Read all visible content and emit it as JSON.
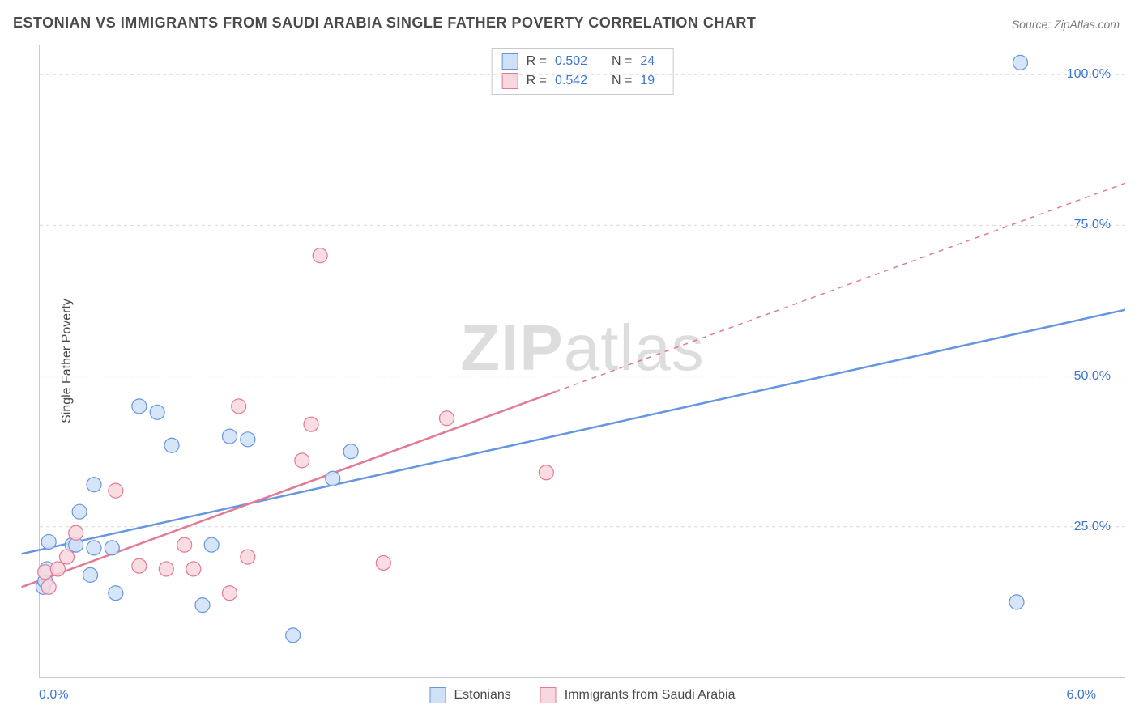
{
  "title": "ESTONIAN VS IMMIGRANTS FROM SAUDI ARABIA SINGLE FATHER POVERTY CORRELATION CHART",
  "source": "Source: ZipAtlas.com",
  "ylabel": "Single Father Poverty",
  "watermark_a": "ZIP",
  "watermark_b": "atlas",
  "chart": {
    "type": "scatter",
    "xlim": [
      0.0,
      6.0
    ],
    "ylim": [
      0.0,
      105.0
    ],
    "xticks": [
      {
        "v": 0.0,
        "label": "0.0%"
      },
      {
        "v": 6.0,
        "label": "6.0%"
      }
    ],
    "yticks": [
      {
        "v": 25.0,
        "label": "25.0%"
      },
      {
        "v": 50.0,
        "label": "50.0%"
      },
      {
        "v": 75.0,
        "label": "75.0%"
      },
      {
        "v": 100.0,
        "label": "100.0%"
      }
    ],
    "grid_color": "#d9d9d9",
    "background_color": "#ffffff",
    "marker_radius": 9,
    "series": [
      {
        "name": "Estonians",
        "fill": "#cfe0f7",
        "stroke": "#6696df",
        "trend": {
          "x1": -0.1,
          "y1": 20.5,
          "x2": 6.0,
          "y2": 61.0,
          "dashed_from_x": null
        },
        "R": "0.502",
        "N": "24",
        "points": [
          [
            0.02,
            15.0
          ],
          [
            0.03,
            16.0
          ],
          [
            0.04,
            18.0
          ],
          [
            0.05,
            22.5
          ],
          [
            0.18,
            22.0
          ],
          [
            0.2,
            22.0
          ],
          [
            0.22,
            27.5
          ],
          [
            0.3,
            21.5
          ],
          [
            0.28,
            17.0
          ],
          [
            0.3,
            32.0
          ],
          [
            0.4,
            21.5
          ],
          [
            0.42,
            14.0
          ],
          [
            0.55,
            45.0
          ],
          [
            0.65,
            44.0
          ],
          [
            0.73,
            38.5
          ],
          [
            0.9,
            12.0
          ],
          [
            0.95,
            22.0
          ],
          [
            1.05,
            40.0
          ],
          [
            1.15,
            39.5
          ],
          [
            1.4,
            7.0
          ],
          [
            1.62,
            33.0
          ],
          [
            1.72,
            37.5
          ],
          [
            5.42,
            102.0
          ],
          [
            5.4,
            12.5
          ]
        ]
      },
      {
        "name": "Immigrants from Saudi Arabia",
        "fill": "#f8d7de",
        "stroke": "#e27a94",
        "trend": {
          "x1": -0.1,
          "y1": 15.0,
          "x2": 6.0,
          "y2": 82.0,
          "dashed_from_x": 2.85
        },
        "R": "0.542",
        "N": "19",
        "points": [
          [
            0.03,
            17.5
          ],
          [
            0.05,
            15.0
          ],
          [
            0.1,
            18.0
          ],
          [
            0.15,
            20.0
          ],
          [
            0.2,
            24.0
          ],
          [
            0.42,
            31.0
          ],
          [
            0.55,
            18.5
          ],
          [
            0.7,
            18.0
          ],
          [
            0.8,
            22.0
          ],
          [
            0.85,
            18.0
          ],
          [
            1.05,
            14.0
          ],
          [
            1.1,
            45.0
          ],
          [
            1.15,
            20.0
          ],
          [
            1.45,
            36.0
          ],
          [
            1.5,
            42.0
          ],
          [
            1.55,
            70.0
          ],
          [
            1.9,
            19.0
          ],
          [
            2.25,
            43.0
          ],
          [
            2.8,
            34.0
          ]
        ]
      }
    ]
  },
  "legend_top": [
    {
      "swatch_fill": "#cfe0f7",
      "swatch_stroke": "#6696df",
      "R": " 0.502",
      "N": " 24"
    },
    {
      "swatch_fill": "#f8d7de",
      "swatch_stroke": "#e27a94",
      "R": " 0.542",
      "N": " 19"
    }
  ],
  "legend_bottom": [
    {
      "swatch_fill": "#cfe0f7",
      "swatch_stroke": "#6696df",
      "label": "Estonians"
    },
    {
      "swatch_fill": "#f8d7de",
      "swatch_stroke": "#e27a94",
      "label": "Immigrants from Saudi Arabia"
    }
  ]
}
